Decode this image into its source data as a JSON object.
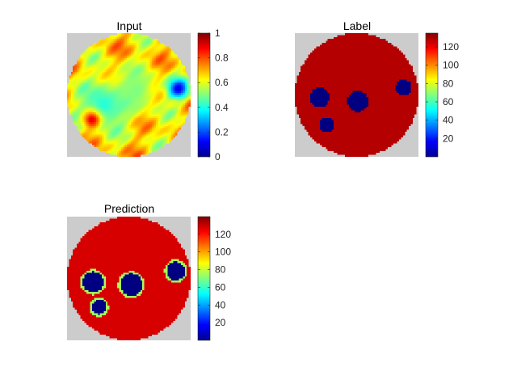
{
  "chart_data": [
    {
      "type": "heatmap",
      "title": "Input",
      "colormap": "jet",
      "colorbar": {
        "ticks": [
          0,
          0.2,
          0.4,
          0.6,
          0.8,
          1
        ],
        "tick_labels": [
          "0",
          "0.2",
          "0.4",
          "0.6",
          "0.8",
          "1"
        ],
        "range": [
          0,
          1
        ]
      },
      "background": "#cccccc",
      "mask": "circle",
      "features": [
        {
          "kind": "blob",
          "cx": 0.3,
          "cy": 0.58,
          "r": 0.2,
          "value": 0.4
        },
        {
          "kind": "blob",
          "cx": 0.56,
          "cy": 0.46,
          "r": 0.18,
          "value": 0.5
        },
        {
          "kind": "blob",
          "cx": 0.9,
          "cy": 0.45,
          "r": 0.08,
          "value": 0.1
        },
        {
          "kind": "blob",
          "cx": 0.2,
          "cy": 0.7,
          "r": 0.07,
          "value": 0.9
        }
      ]
    },
    {
      "type": "heatmap",
      "title": "Label",
      "colormap": "jet",
      "colorbar": {
        "ticks": [
          20,
          40,
          60,
          80,
          100,
          120
        ],
        "tick_labels": [
          "20",
          "40",
          "60",
          "80",
          "100",
          "120"
        ],
        "range": [
          0,
          135
        ]
      },
      "background": "#cccccc",
      "mask": "circle",
      "fill_value": 128,
      "inclusions": [
        {
          "cx": 0.2,
          "cy": 0.52,
          "r": 0.08,
          "value": 0
        },
        {
          "cx": 0.51,
          "cy": 0.55,
          "r": 0.085,
          "value": 0
        },
        {
          "cx": 0.88,
          "cy": 0.44,
          "r": 0.065,
          "value": 0
        },
        {
          "cx": 0.26,
          "cy": 0.74,
          "r": 0.06,
          "value": 0
        }
      ]
    },
    {
      "type": "heatmap",
      "title": "Prediction",
      "colormap": "jet",
      "colorbar": {
        "ticks": [
          20,
          40,
          60,
          80,
          100,
          120
        ],
        "tick_labels": [
          "20",
          "40",
          "60",
          "80",
          "100",
          "120"
        ],
        "range": [
          0,
          140
        ]
      },
      "background": "#cccccc",
      "mask": "circle",
      "fill_value": 128,
      "inclusions": [
        {
          "cx": 0.21,
          "cy": 0.53,
          "r": 0.085,
          "value": 0
        },
        {
          "cx": 0.52,
          "cy": 0.55,
          "r": 0.09,
          "value": 0
        },
        {
          "cx": 0.88,
          "cy": 0.44,
          "r": 0.075,
          "value": 0
        },
        {
          "cx": 0.26,
          "cy": 0.73,
          "r": 0.06,
          "value": 0
        }
      ]
    }
  ]
}
